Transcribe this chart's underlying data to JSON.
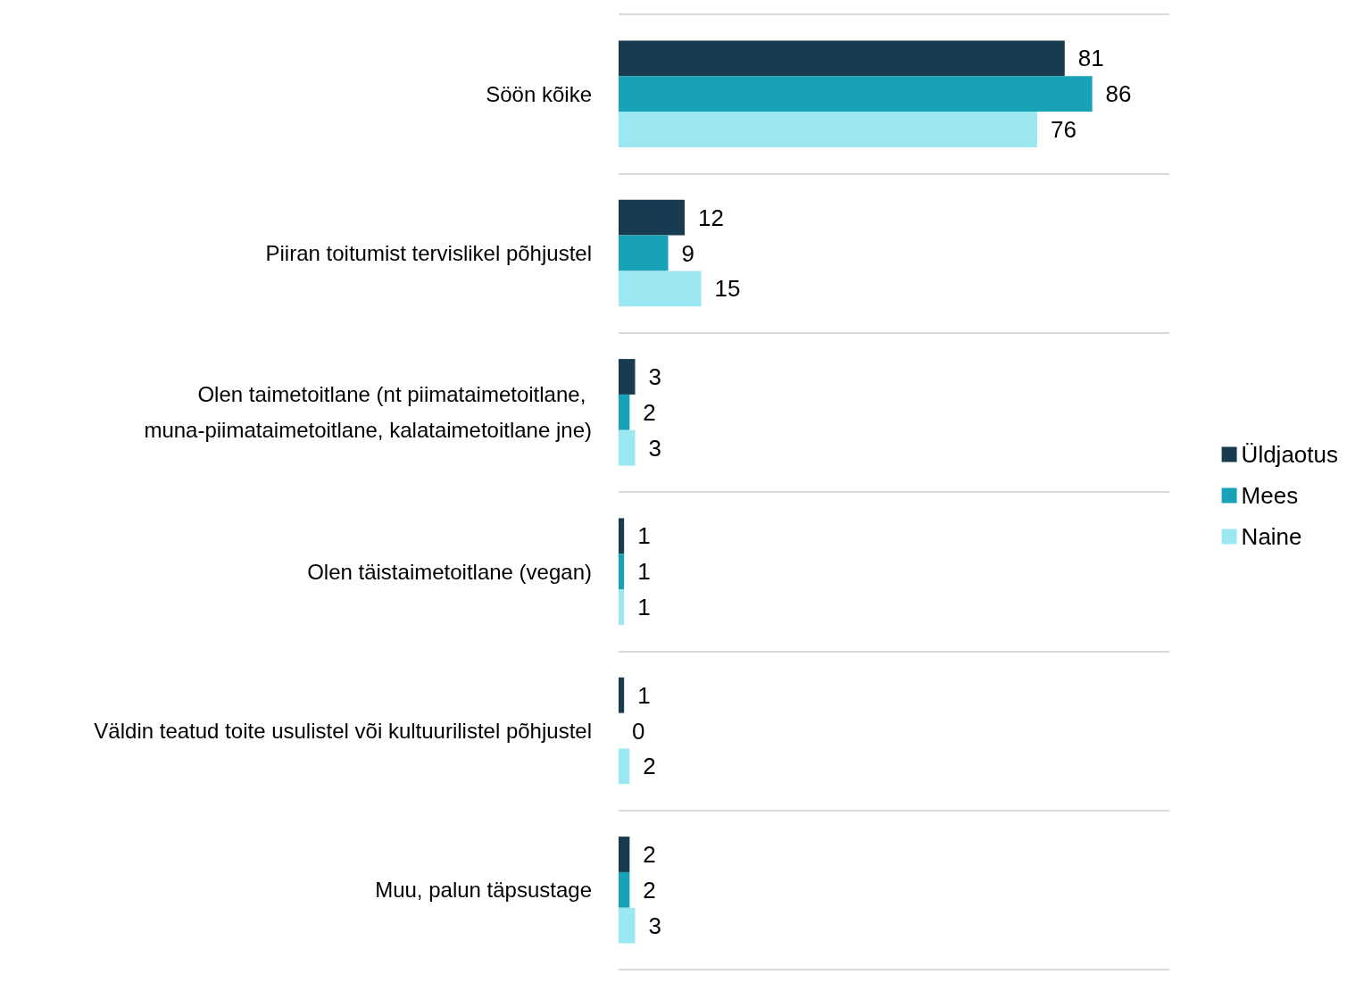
{
  "chart_data": {
    "type": "bar",
    "orientation": "horizontal",
    "categories": [
      "Söön kõike",
      "Piiran toitumist tervislikel põhjustel",
      "Olen taimetoitlane (nt piimataimetoitlane, muna-piimataimetoitlane, kalataimetoitlane jne)",
      "Olen täistaimetoitlane (vegan)",
      "Väldin teatud toite usulistel või kultuurilistel põhjustel",
      "Muu, palun täpsustage"
    ],
    "series": [
      {
        "name": "Üldjaotus",
        "color": "#183b50",
        "values": [
          81,
          12,
          3,
          1,
          1,
          2
        ]
      },
      {
        "name": "Mees",
        "color": "#17a2b8",
        "values": [
          86,
          9,
          2,
          1,
          0,
          2
        ]
      },
      {
        "name": "Naine",
        "color": "#9be8f3",
        "values": [
          76,
          15,
          3,
          1,
          2,
          3
        ]
      }
    ],
    "data_labels": true,
    "grid": "y",
    "legend": "right"
  }
}
